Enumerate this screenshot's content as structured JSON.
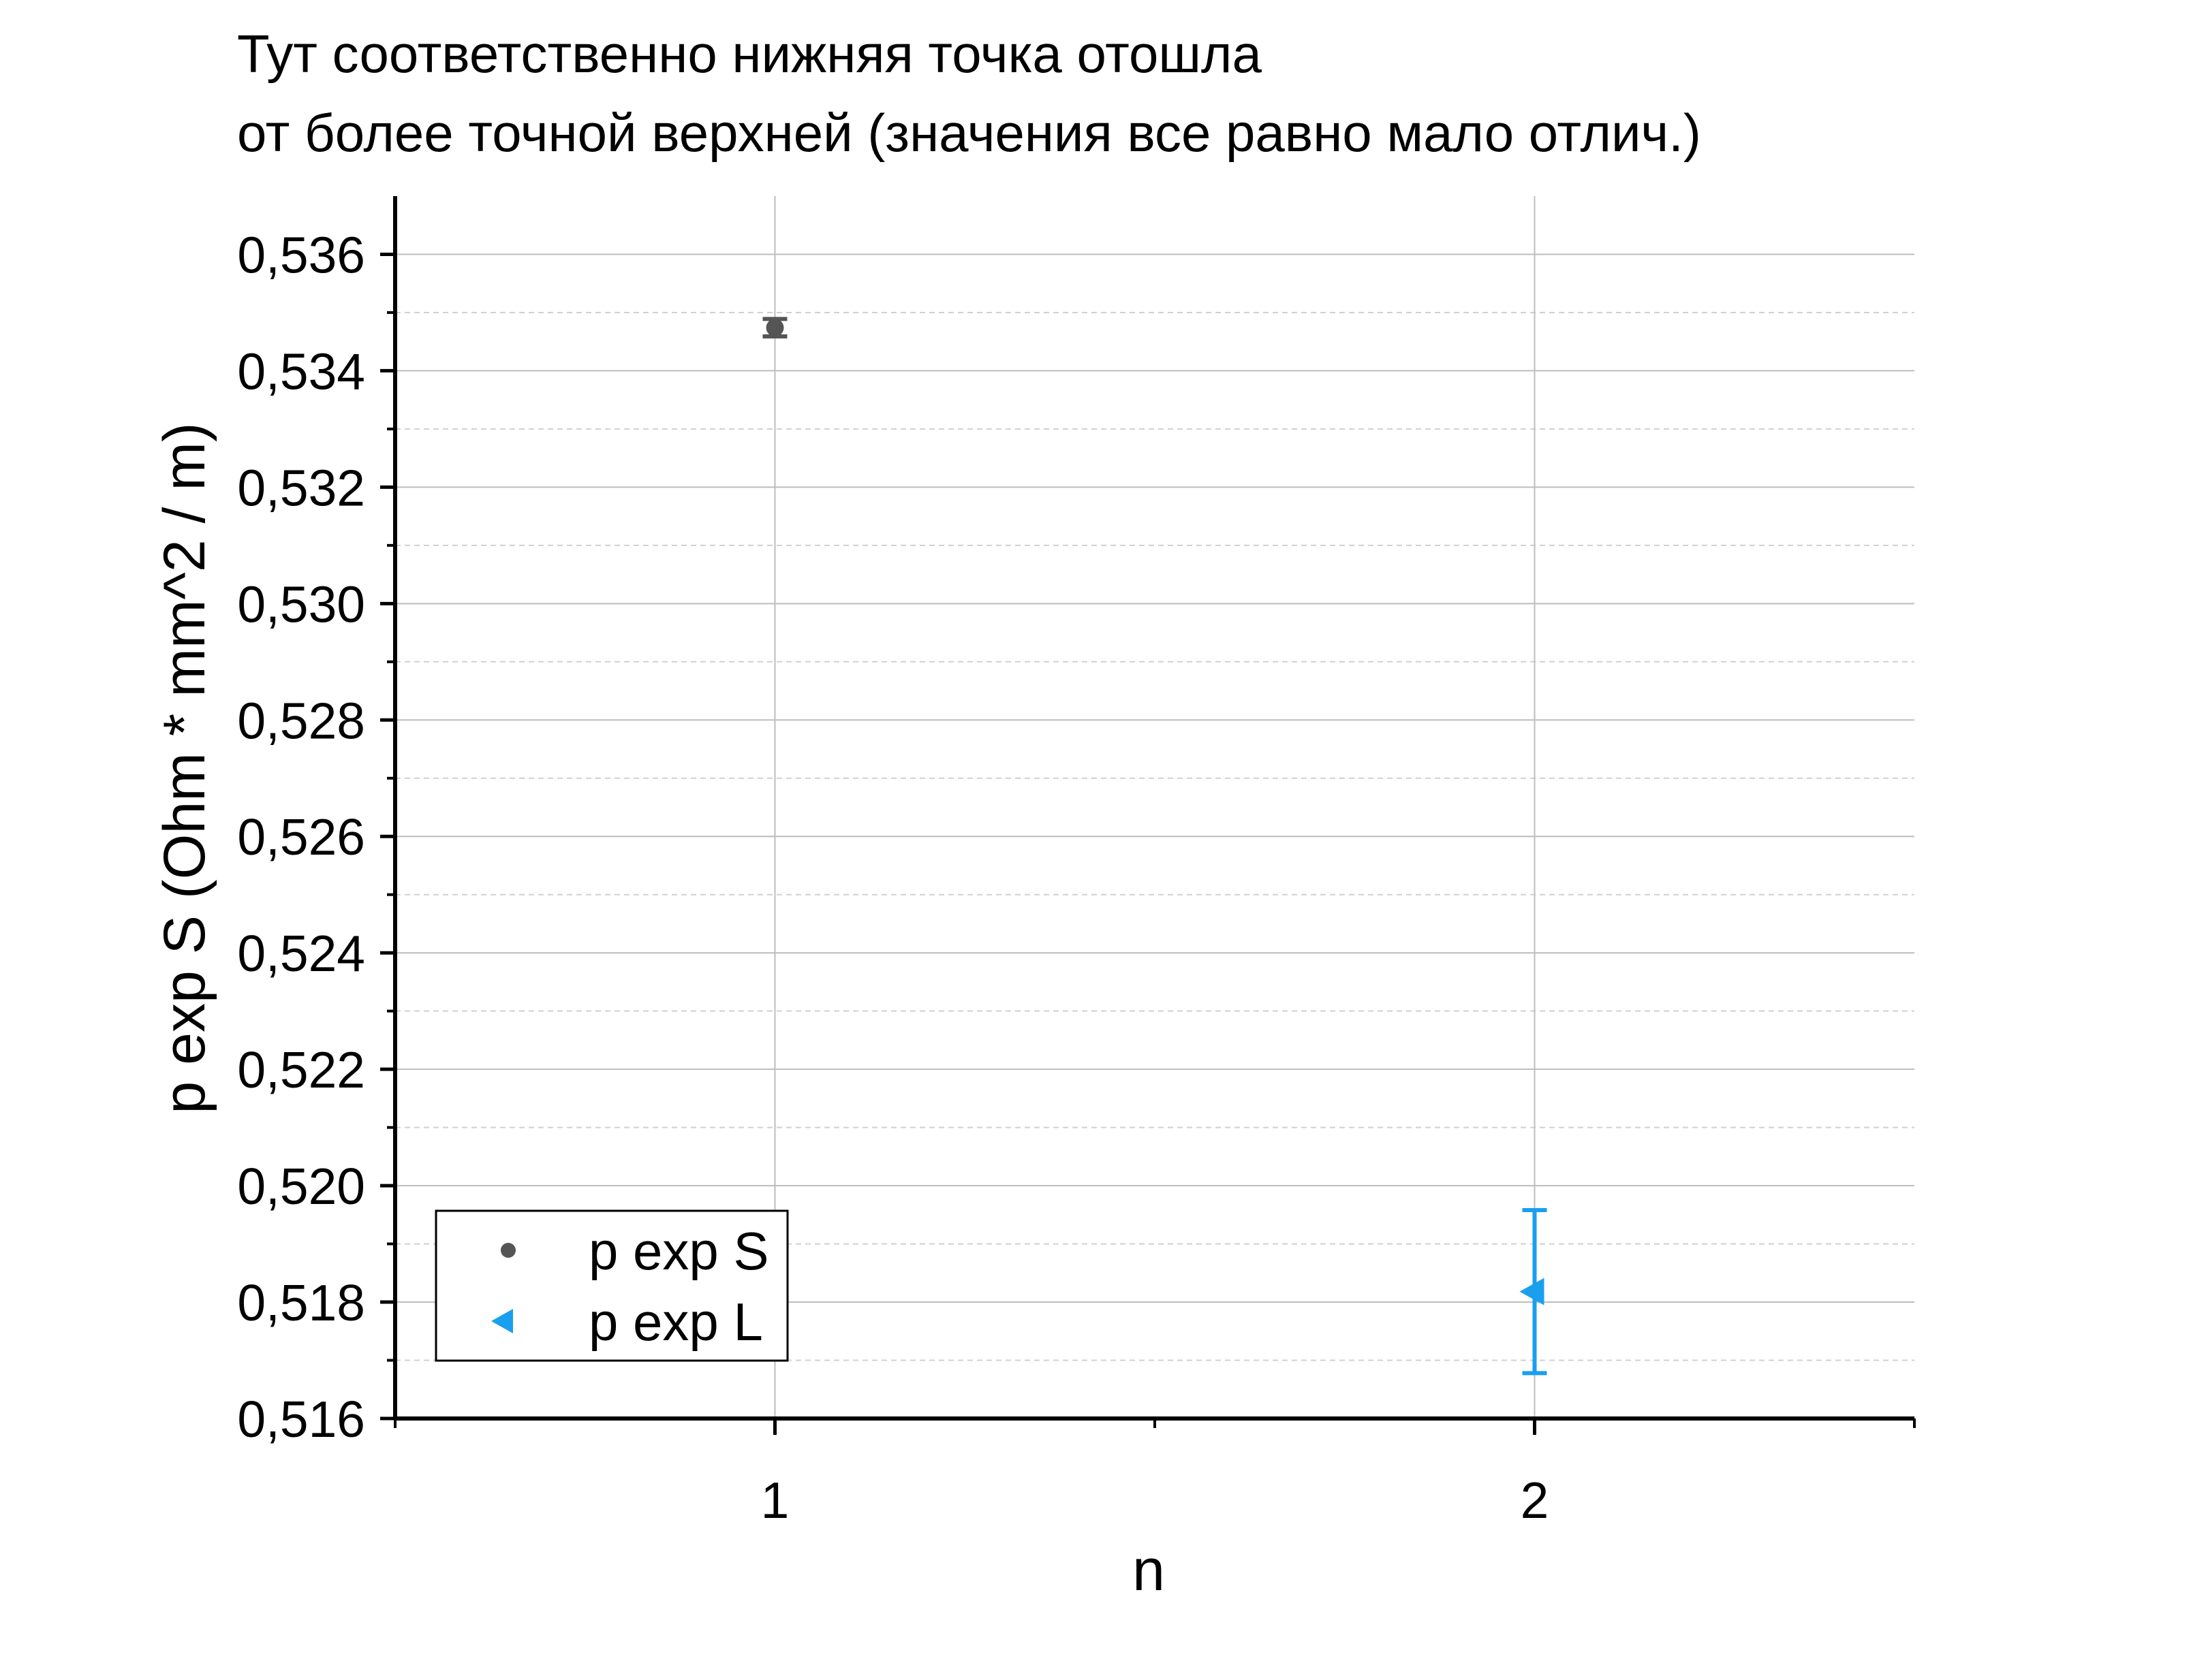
{
  "chart_data": {
    "type": "scatter",
    "title_lines": [
      "Тут соответственно нижняя точка отошла",
      "от более точной верхней (значения все равно мало отлич.)"
    ],
    "xlabel": "n",
    "ylabel": "p exp S (Ohm * mm^2 / m)",
    "xlim": [
      0.5,
      2.5
    ],
    "ylim": [
      0.516,
      0.537
    ],
    "x_ticks": [
      1,
      2
    ],
    "x_tick_labels": [
      "1",
      "2"
    ],
    "y_ticks": [
      0.516,
      0.518,
      0.52,
      0.522,
      0.524,
      0.526,
      0.528,
      0.53,
      0.532,
      0.534,
      0.536
    ],
    "y_tick_labels": [
      "0,516",
      "0,518",
      "0,520",
      "0,522",
      "0,524",
      "0,526",
      "0,528",
      "0,530",
      "0,532",
      "0,534",
      "0,536"
    ],
    "grid": true,
    "legend_position": "bottom-left",
    "series": [
      {
        "name": "p exp S",
        "marker": "circle",
        "color": "#555555",
        "points": [
          {
            "x": 1,
            "y": 0.53474,
            "yerr": 0.00015
          }
        ]
      },
      {
        "name": "p exp L",
        "marker": "triangle-left",
        "color": "#1a9fef",
        "points": [
          {
            "x": 2,
            "y": 0.51818,
            "yerr": 0.0014
          }
        ]
      }
    ]
  }
}
